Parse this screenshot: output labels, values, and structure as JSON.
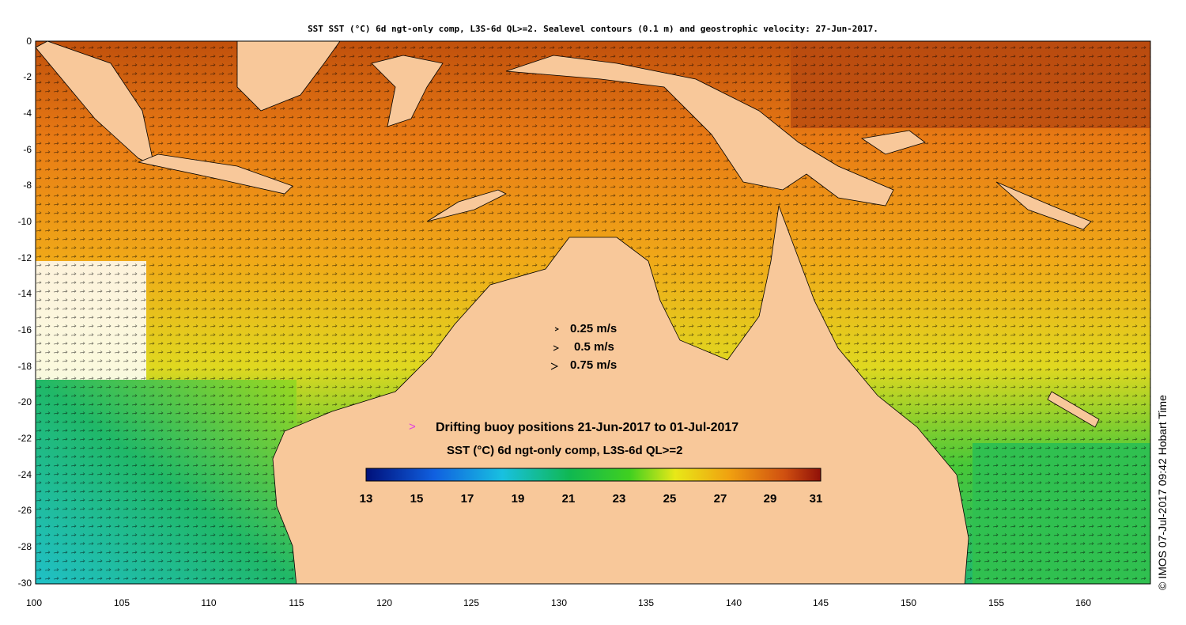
{
  "title": "SST SST (°C) 6d ngt-only comp, L3S-6d QL>=2. Sealevel contours (0.1 m) and geostrophic velocity: 27-Jun-2017.",
  "axes": {
    "y_ticks": [
      "0",
      "-2",
      "-4",
      "-6",
      "-8",
      "-10",
      "-12",
      "-14",
      "-16",
      "-18",
      "-20",
      "-22",
      "-24",
      "-26",
      "-28",
      "-30"
    ],
    "x_ticks": [
      "100",
      "105",
      "110",
      "115",
      "120",
      "125",
      "130",
      "135",
      "140",
      "145",
      "150",
      "155",
      "160"
    ]
  },
  "velocity_legend": {
    "items": [
      "0.25 m/s",
      "0.5 m/s",
      "0.75 m/s"
    ],
    "arrow_glyph": ">"
  },
  "buoy_legend": {
    "glyph": ">",
    "text": "Drifting buoy positions 21-Jun-2017 to 01-Jul-2017"
  },
  "colorbar": {
    "title": "SST (°C) 6d ngt-only comp, L3S-6d QL>=2",
    "ticks": [
      "13",
      "15",
      "17",
      "19",
      "21",
      "23",
      "25",
      "27",
      "29",
      "31"
    ],
    "min": 13,
    "max": 31
  },
  "credit": "© IMOS 07-Jul-2017 09:42 Hobart Time",
  "colors": {
    "land": "#f8c89a",
    "cold": "#1a1aa0",
    "mid": "#18c06a",
    "warm": "#f09a18",
    "hot": "#a01808",
    "buoy": "#e040e0"
  }
}
